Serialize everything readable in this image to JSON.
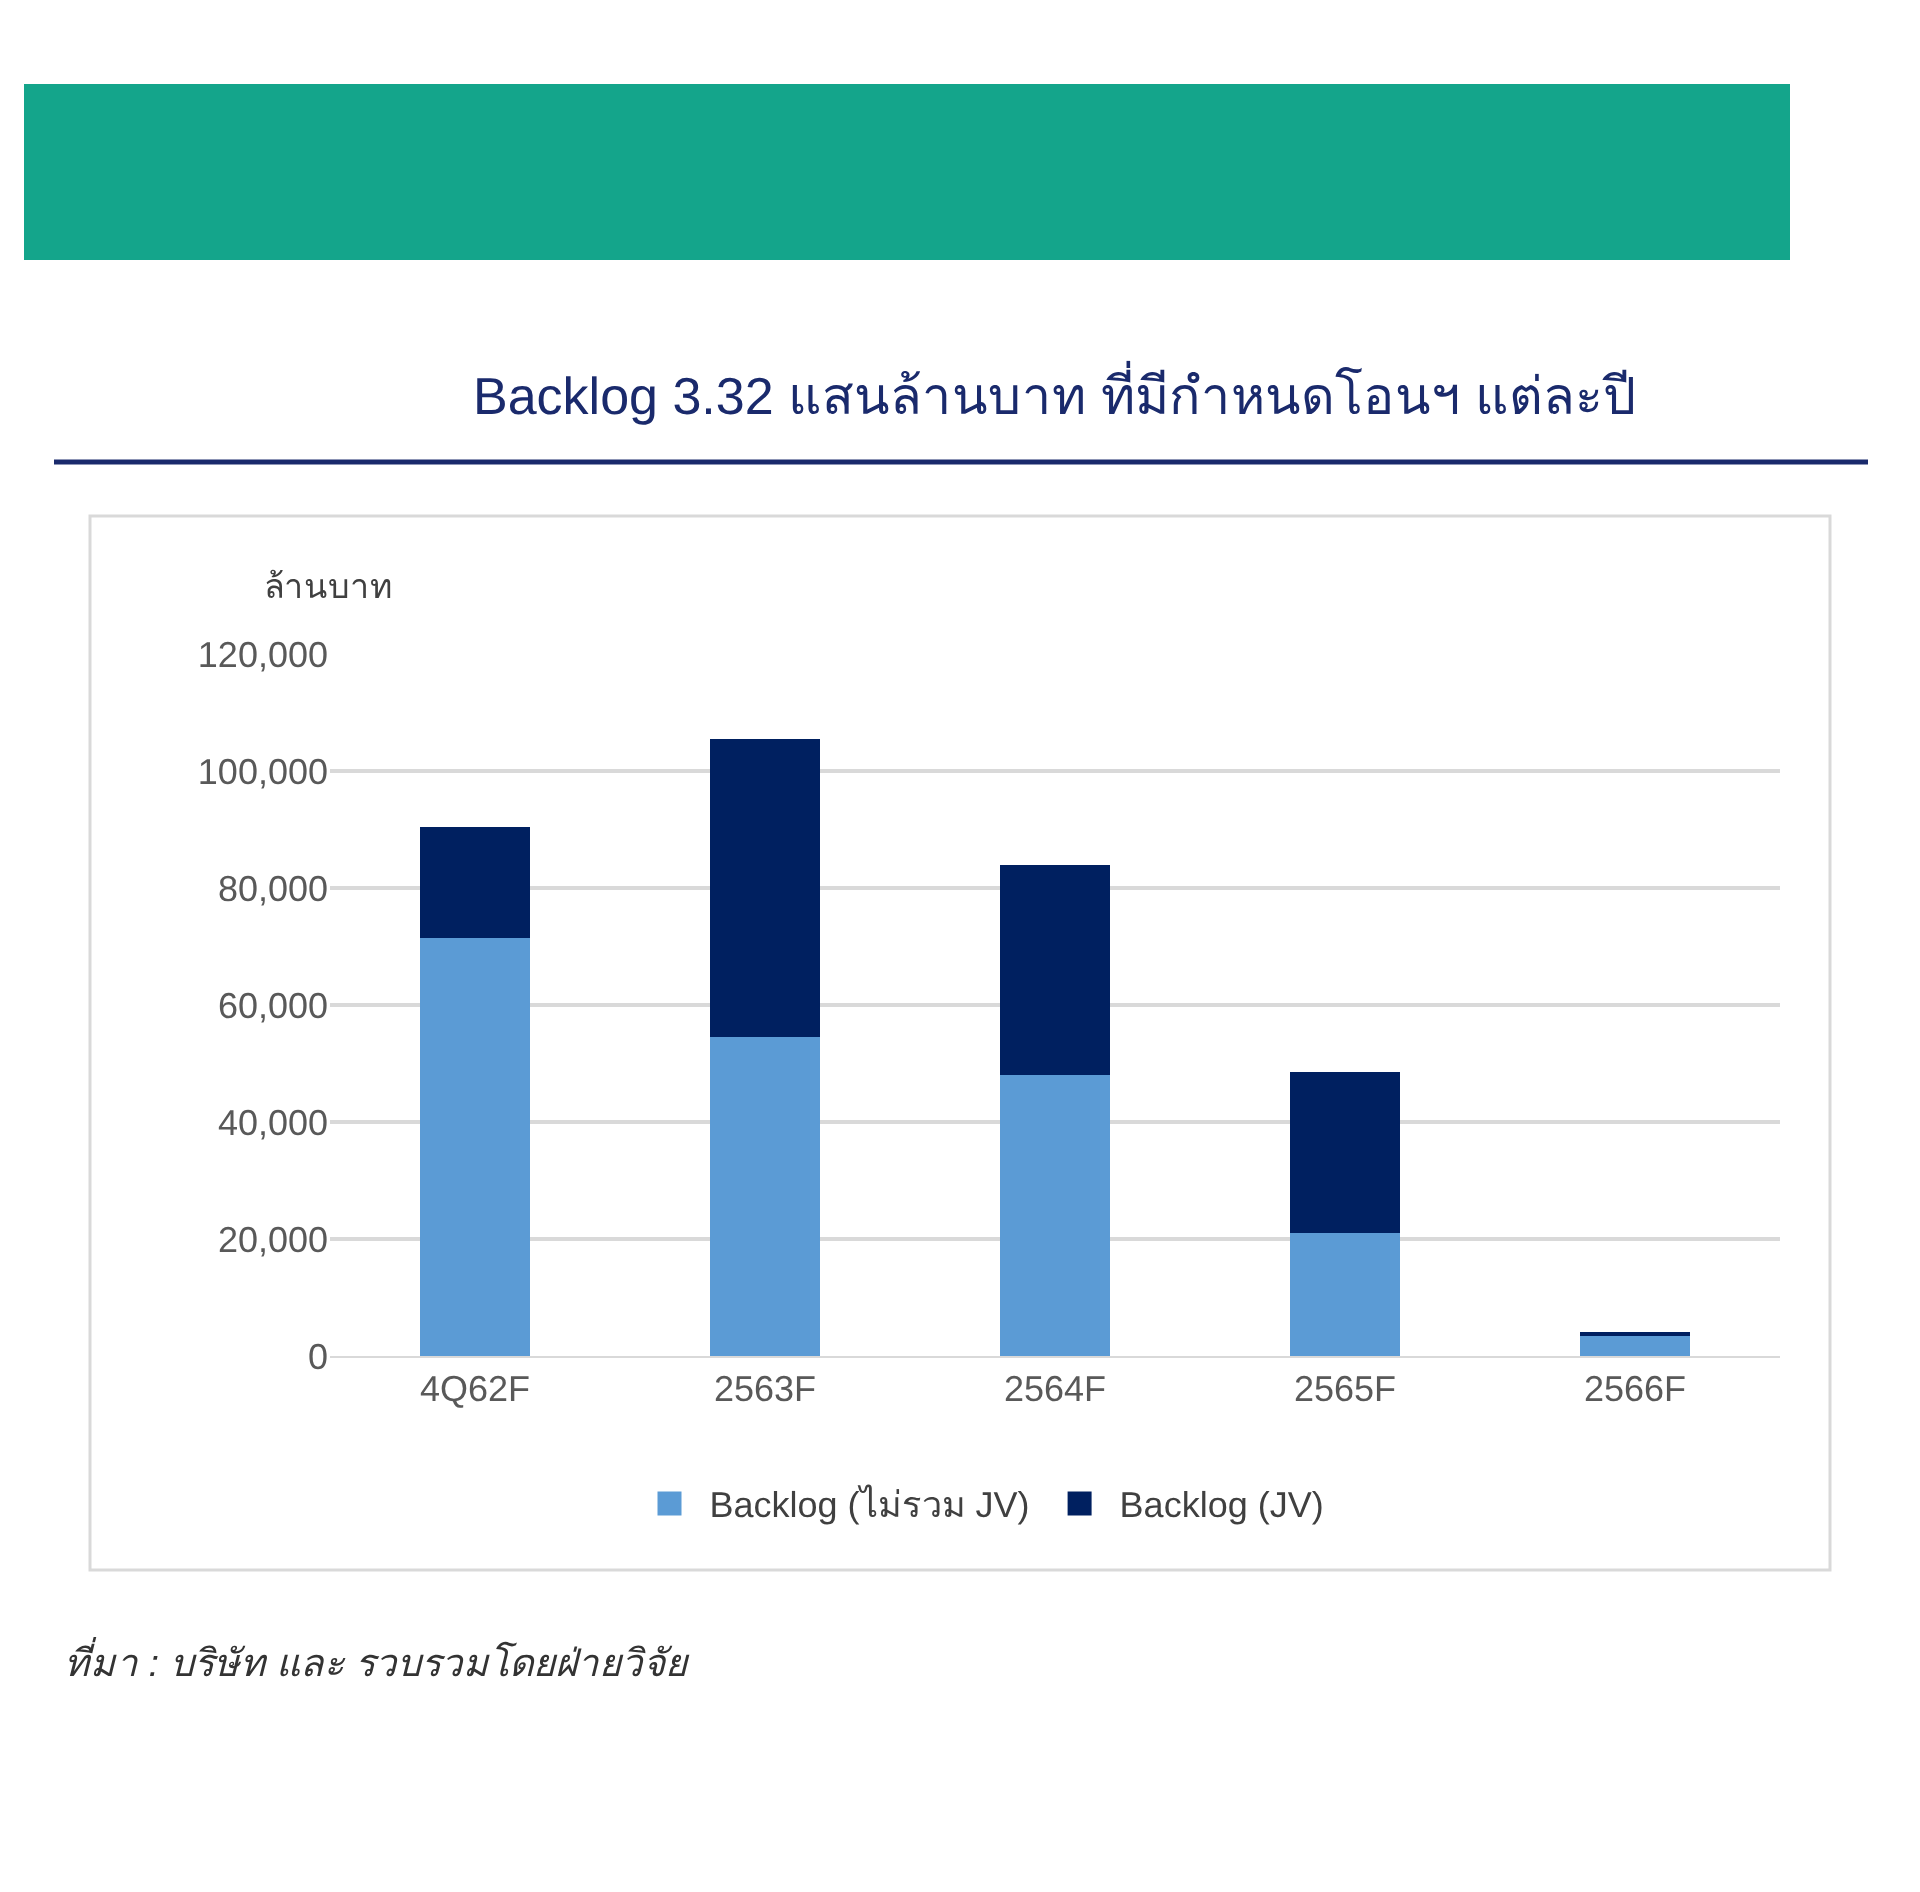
{
  "chart_data": {
    "type": "bar",
    "title": "Backlog 3.32 แสนล้านบาท ที่มีกำหนดโอนฯ แต่ละปี",
    "ylabel": "ล้านบาท",
    "categories": [
      "4Q62F",
      "2563F",
      "2564F",
      "2565F",
      "2566F"
    ],
    "stacked": true,
    "series": [
      {
        "name": "Backlog (ไม่รวม JV)",
        "color": "#5b9bd5",
        "values": [
          71500,
          54500,
          48000,
          21000,
          3500
        ]
      },
      {
        "name": "Backlog (JV)",
        "color": "#002060",
        "values": [
          19000,
          51000,
          36000,
          27500,
          500
        ]
      }
    ],
    "ylim": [
      0,
      120000
    ],
    "yticks": [
      {
        "value": 0,
        "label": "0"
      },
      {
        "value": 20000,
        "label": "20,000"
      },
      {
        "value": 40000,
        "label": "40,000"
      },
      {
        "value": 60000,
        "label": "60,000"
      },
      {
        "value": 80000,
        "label": "80,000"
      },
      {
        "value": 100000,
        "label": "100,000"
      },
      {
        "value": 120000,
        "label": "120,000"
      }
    ],
    "grid": "y",
    "legend": "bottom",
    "annotations": [
      "ที่มา : บริษัท และ รวบรวมโดยฝ่ายวิจัย"
    ]
  }
}
